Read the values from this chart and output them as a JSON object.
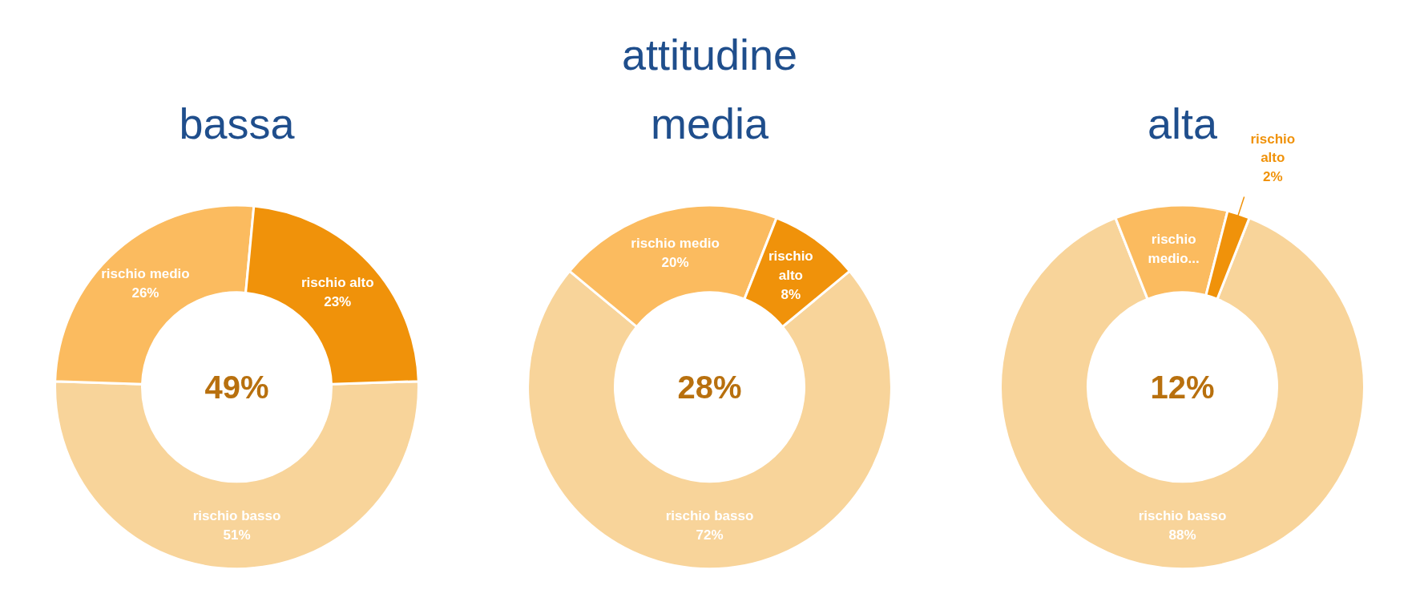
{
  "chart_data": [
    {
      "type": "donut",
      "title": "bassa",
      "categories": [
        "rischio basso",
        "rischio medio",
        "rischio alto"
      ],
      "values": [
        51,
        26,
        23
      ],
      "colors": [
        "#f8d49a",
        "#fbbb5f",
        "#f0920a"
      ],
      "value_labels": [
        "51%",
        "26%",
        "23%"
      ],
      "annotations": [
        "49%"
      ],
      "legend": false
    },
    {
      "type": "donut",
      "subtitle": "attitudine",
      "title": "media",
      "categories": [
        "rischio basso",
        "rischio medio",
        "rischio alto"
      ],
      "values": [
        72,
        20,
        8
      ],
      "colors": [
        "#f8d49a",
        "#fbbb5f",
        "#f0920a"
      ],
      "value_labels": [
        "72%",
        "20%",
        "8%"
      ],
      "annotations": [
        "28%"
      ],
      "legend": false
    },
    {
      "type": "donut",
      "title": "alta",
      "categories": [
        "rischio basso",
        "rischio medio...",
        "rischio alto"
      ],
      "values": [
        88,
        10,
        2
      ],
      "colors": [
        "#f8d49a",
        "#fbbb5f",
        "#f0920a"
      ],
      "value_labels": [
        "88%",
        null,
        "2%"
      ],
      "annotations": [
        "12%"
      ],
      "legend": false
    }
  ]
}
